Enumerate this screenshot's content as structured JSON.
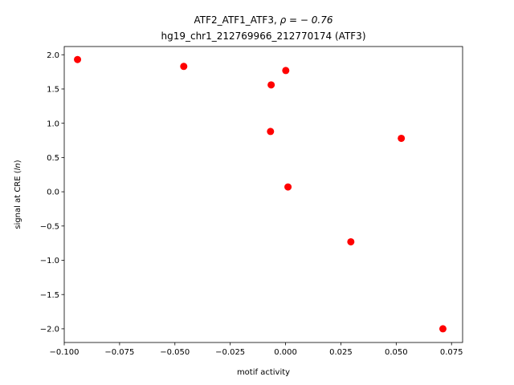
{
  "chart_data": {
    "type": "scatter",
    "title_line1_prefix": "ATF2_ATF1_ATF3, ",
    "title_line1_rho": "ρ = − 0.76",
    "title_line2": "hg19_chr1_212769966_212770174 (ATF3)",
    "xlabel": "motif activity",
    "ylabel": "signal at CRE (ln)",
    "xlim": [
      -0.1,
      0.08
    ],
    "ylim": [
      -2.2,
      2.12
    ],
    "xticks": [
      {
        "value": -0.1,
        "label": "−0.100"
      },
      {
        "value": -0.075,
        "label": "−0.075"
      },
      {
        "value": -0.05,
        "label": "−0.050"
      },
      {
        "value": -0.025,
        "label": "−0.025"
      },
      {
        "value": 0.0,
        "label": "0.000"
      },
      {
        "value": 0.025,
        "label": "0.025"
      },
      {
        "value": 0.05,
        "label": "0.050"
      },
      {
        "value": 0.075,
        "label": "0.075"
      }
    ],
    "yticks": [
      {
        "value": 2.0,
        "label": "2.0"
      },
      {
        "value": 1.5,
        "label": "1.5"
      },
      {
        "value": 1.0,
        "label": "1.0"
      },
      {
        "value": 0.5,
        "label": "0.5"
      },
      {
        "value": 0.0,
        "label": "0.0"
      },
      {
        "value": -0.5,
        "label": "−0.5"
      },
      {
        "value": -1.0,
        "label": "−1.0"
      },
      {
        "value": -1.5,
        "label": "−1.5"
      },
      {
        "value": -2.0,
        "label": "−2.0"
      }
    ],
    "points": [
      {
        "x": -0.094,
        "y": 1.93
      },
      {
        "x": -0.046,
        "y": 1.83
      },
      {
        "x": -0.0065,
        "y": 1.56
      },
      {
        "x": 0.0001,
        "y": 1.77
      },
      {
        "x": -0.0068,
        "y": 0.88
      },
      {
        "x": 0.0011,
        "y": 0.07
      },
      {
        "x": 0.0523,
        "y": 0.78
      },
      {
        "x": 0.0295,
        "y": -0.73
      },
      {
        "x": 0.0711,
        "y": -2.0
      }
    ],
    "grid": false,
    "marker_color": "#ff0000"
  }
}
